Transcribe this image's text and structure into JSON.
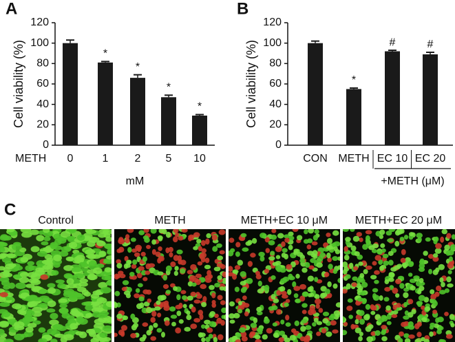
{
  "chart_data": [
    {
      "type": "bar",
      "panel": "A",
      "ylabel": "Cell viability (%)",
      "xlabel": "mM",
      "x_row_label": "METH",
      "categories": [
        "0",
        "1",
        "2",
        "5",
        "10"
      ],
      "values": [
        100,
        81,
        66,
        47,
        29
      ],
      "errors": [
        3,
        1,
        3,
        2,
        1
      ],
      "annotations": [
        null,
        "*",
        "*",
        "*",
        "*"
      ],
      "color": "#1a1a1a",
      "ylim": [
        0,
        120
      ],
      "yticks": [
        0,
        20,
        40,
        60,
        80,
        100,
        120
      ]
    },
    {
      "type": "bar",
      "panel": "B",
      "ylabel": "Cell viability (%)",
      "group_label": "+METH (μM)",
      "categories": [
        "CON",
        "METH",
        "EC 10",
        "EC 20"
      ],
      "values": [
        100,
        55,
        92,
        89
      ],
      "errors": [
        2,
        1,
        1,
        2
      ],
      "annotations": [
        null,
        "*",
        "#",
        "#"
      ],
      "color": "#1a1a1a",
      "ylim": [
        0,
        120
      ],
      "yticks": [
        0,
        20,
        40,
        60,
        80,
        100,
        120
      ]
    }
  ],
  "images": {
    "panel": "C",
    "titles": [
      "Control",
      "METH",
      "METH+EC 10 μM",
      "METH+EC 20 μM"
    ]
  }
}
